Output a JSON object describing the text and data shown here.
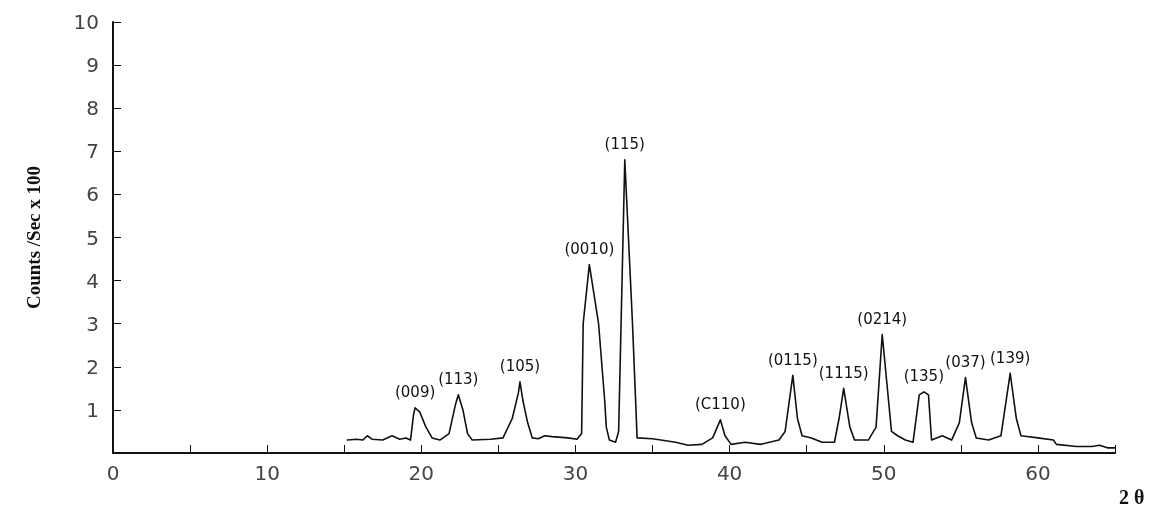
{
  "chart_data": {
    "type": "line",
    "xlabel": "2 θ",
    "ylabel": "Counts /Sec x 100",
    "xlim": [
      0,
      65
    ],
    "ylim": [
      0,
      10
    ],
    "xticks": [
      0,
      {
        "value": 5,
        "label": null
      },
      10,
      {
        "value": 15,
        "label": null
      },
      20,
      {
        "value": 25,
        "label": null
      },
      30,
      {
        "value": 35,
        "label": null
      },
      40,
      {
        "value": 45,
        "label": null
      },
      50,
      {
        "value": 55,
        "label": null
      },
      60,
      {
        "value": 65,
        "label": null
      }
    ],
    "yticks": [
      1,
      2,
      3,
      4,
      5,
      6,
      7,
      8,
      9,
      10
    ],
    "grid": false,
    "marker": "none",
    "line_style": "solid",
    "series": [
      {
        "color": "#111111",
        "x": [
          15.2,
          15.8,
          16.2,
          16.5,
          16.8,
          17.5,
          18.1,
          18.6,
          19.0,
          19.3,
          19.5,
          19.6,
          19.9,
          20.3,
          20.7,
          21.2,
          21.8,
          22.2,
          22.4,
          22.7,
          23.0,
          23.3,
          24.5,
          25.3,
          25.9,
          26.3,
          26.4,
          26.6,
          26.9,
          27.2,
          27.6,
          28.0,
          28.5,
          29.5,
          30.1,
          30.4,
          30.5,
          30.9,
          31.5,
          31.9,
          32.0,
          32.2,
          32.6,
          32.8,
          33.2,
          33.7,
          34.0,
          35,
          36.5,
          37.3,
          38.2,
          38.9,
          39.4,
          39.7,
          40.1,
          41,
          42,
          43.2,
          43.6,
          44.1,
          44.4,
          44.7,
          45.3,
          46,
          46.8,
          47.1,
          47.4,
          47.8,
          48.1,
          49.0,
          49.5,
          49.9,
          50.5,
          50.9,
          51.4,
          51.9,
          52.3,
          52.6,
          52.9,
          53.1,
          53.8,
          54.4,
          54.9,
          55.3,
          55.7,
          56.0,
          56.8,
          57.6,
          58.2,
          58.6,
          58.9,
          60.0,
          61,
          61.2,
          62.5,
          63.5,
          64.0,
          64.5,
          65
        ],
        "values": [
          0.3,
          0.32,
          0.3,
          0.4,
          0.32,
          0.3,
          0.4,
          0.32,
          0.35,
          0.3,
          0.9,
          1.05,
          0.95,
          0.6,
          0.35,
          0.3,
          0.45,
          1.1,
          1.35,
          1.0,
          0.45,
          0.3,
          0.32,
          0.35,
          0.8,
          1.4,
          1.65,
          1.2,
          0.7,
          0.35,
          0.33,
          0.4,
          0.38,
          0.35,
          0.32,
          0.45,
          3.0,
          4.37,
          3.0,
          1.2,
          0.6,
          0.3,
          0.25,
          0.5,
          6.8,
          3.0,
          0.35,
          0.33,
          0.25,
          0.18,
          0.2,
          0.35,
          0.77,
          0.4,
          0.2,
          0.25,
          0.2,
          0.3,
          0.5,
          1.8,
          0.8,
          0.4,
          0.35,
          0.25,
          0.25,
          0.8,
          1.5,
          0.6,
          0.3,
          0.3,
          0.6,
          2.75,
          0.5,
          0.4,
          0.3,
          0.25,
          1.35,
          1.42,
          1.35,
          0.3,
          0.4,
          0.3,
          0.7,
          1.75,
          0.7,
          0.35,
          0.3,
          0.4,
          1.85,
          0.8,
          0.4,
          0.35,
          0.3,
          0.2,
          0.15,
          0.15,
          0.18,
          0.12,
          0.12
        ]
      }
    ],
    "annotations": [
      {
        "text": "(009)",
        "x": 19.6,
        "y": 1.05
      },
      {
        "text": "(113)",
        "x": 22.4,
        "y": 1.35
      },
      {
        "text": "(105)",
        "x": 26.4,
        "y": 1.65
      },
      {
        "text": "(0010)",
        "x": 30.9,
        "y": 4.37
      },
      {
        "text": "(115)",
        "x": 33.2,
        "y": 6.8
      },
      {
        "text": "(C110)",
        "x": 39.4,
        "y": 0.77
      },
      {
        "text": "(0115)",
        "x": 44.1,
        "y": 1.8
      },
      {
        "text": "(1115)",
        "x": 47.4,
        "y": 1.5
      },
      {
        "text": "(0214)",
        "x": 49.9,
        "y": 2.75
      },
      {
        "text": "(135)",
        "x": 52.6,
        "y": 1.42
      },
      {
        "text": "(037)",
        "x": 55.3,
        "y": 1.75
      },
      {
        "text": "(139)",
        "x": 58.2,
        "y": 1.85
      }
    ]
  }
}
